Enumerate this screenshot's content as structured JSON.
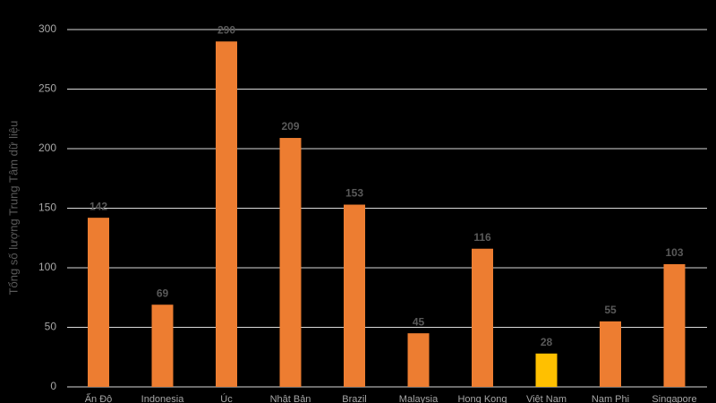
{
  "chart_data": {
    "type": "bar",
    "y_label": "Tổng số lượng Trung Tâm dữ liệu",
    "categories": [
      "Ấn Độ",
      "Indonesia",
      "Úc",
      "Nhật Bản",
      "Brazil",
      "Malaysia",
      "Hong Kong",
      "Việt Nam",
      "Nam Phi",
      "Singapore"
    ],
    "values": [
      142,
      69,
      290,
      209,
      153,
      45,
      116,
      28,
      55,
      103
    ],
    "colors": [
      "#ed7d31",
      "#ed7d31",
      "#ed7d31",
      "#ed7d31",
      "#ed7d31",
      "#ed7d31",
      "#ed7d31",
      "#ffc000",
      "#ed7d31",
      "#ed7d31"
    ],
    "ylim": [
      0,
      300
    ],
    "yticks": [
      0,
      50,
      100,
      150,
      200,
      250,
      300
    ],
    "grid": true
  }
}
